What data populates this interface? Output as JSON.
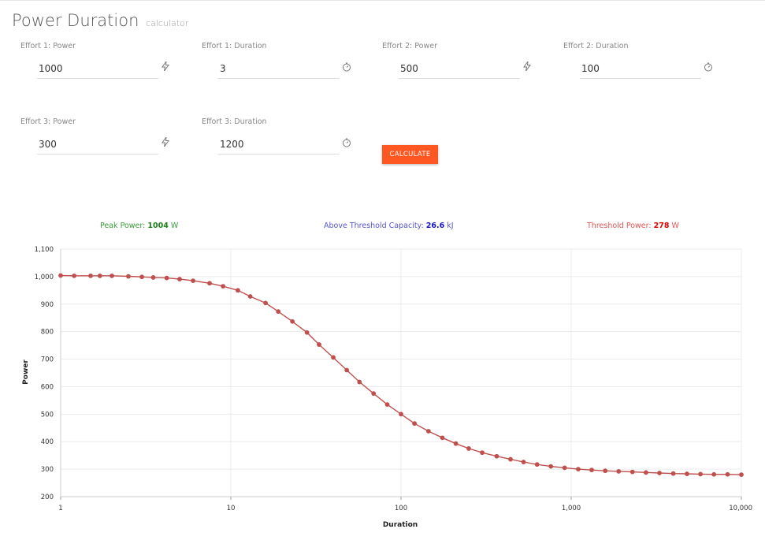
{
  "header": {
    "title": "Power Duration",
    "subtitle": "calculator"
  },
  "form": {
    "effort1_power": {
      "label": "Effort 1: Power",
      "value": "1000",
      "icon": "lightning-icon"
    },
    "effort1_duration": {
      "label": "Effort 1: Duration",
      "value": "3",
      "icon": "stopwatch-icon"
    },
    "effort2_power": {
      "label": "Effort 2: Power",
      "value": "500",
      "icon": "lightning-icon"
    },
    "effort2_duration": {
      "label": "Effort 2: Duration",
      "value": "100",
      "icon": "stopwatch-icon"
    },
    "effort3_power": {
      "label": "Effort 3: Power",
      "value": "300",
      "icon": "lightning-icon"
    },
    "effort3_duration": {
      "label": "Effort 3: Duration",
      "value": "1200",
      "icon": "stopwatch-icon"
    },
    "calculate_label": "CALCULATE"
  },
  "results": {
    "peak_power": {
      "label": "Peak Power:",
      "value": "1004",
      "unit": "W",
      "color": "#1a7f1a"
    },
    "atc": {
      "label": "Above Threshold Capacity:",
      "value": "26.6",
      "unit": "kJ",
      "color": "#1414c8"
    },
    "threshold_power": {
      "label": "Threshold Power:",
      "value": "278",
      "unit": "W",
      "color": "#e00000"
    }
  },
  "chart_data": {
    "type": "line",
    "xlabel": "Duration",
    "ylabel": "Power",
    "xscale": "log",
    "xlim": [
      1,
      10000
    ],
    "ylim": [
      200,
      1100
    ],
    "xticks": [
      1,
      10,
      100,
      1000,
      10000
    ],
    "xtick_labels": [
      "1",
      "10",
      "100",
      "1,000",
      "10,000"
    ],
    "yticks": [
      200,
      300,
      400,
      500,
      600,
      700,
      800,
      900,
      1000,
      1100
    ],
    "ytick_labels": [
      "200",
      "300",
      "400",
      "500",
      "600",
      "700",
      "800",
      "900",
      "1,000",
      "1,100"
    ],
    "grid": true,
    "line_color": "#c0504d",
    "series": [
      {
        "x": [
          1,
          1.2,
          1.5,
          1.7,
          2,
          2.5,
          3,
          3.5,
          4.2,
          5,
          6,
          7.5,
          9,
          11,
          13,
          16,
          19,
          23,
          28,
          33,
          40,
          48,
          57,
          69,
          83,
          100,
          120,
          145,
          175,
          210,
          250,
          300,
          365,
          440,
          525,
          630,
          760,
          915,
          1100,
          1320,
          1585,
          1900,
          2290,
          2750,
          3300,
          3980,
          4790,
          5750,
          6900,
          8300,
          10000
        ],
        "y": [
          1004,
          1003,
          1003,
          1003,
          1003,
          1001,
          999,
          997,
          995,
          991,
          985,
          976,
          965,
          950,
          928,
          904,
          873,
          837,
          797,
          753,
          706,
          660,
          617,
          575,
          535,
          500,
          466,
          438,
          414,
          393,
          375,
          360,
          347,
          336,
          326,
          317,
          310,
          305,
          300,
          297,
          294,
          292,
          290,
          288,
          286,
          284,
          283,
          282,
          281,
          281,
          280
        ]
      }
    ]
  }
}
